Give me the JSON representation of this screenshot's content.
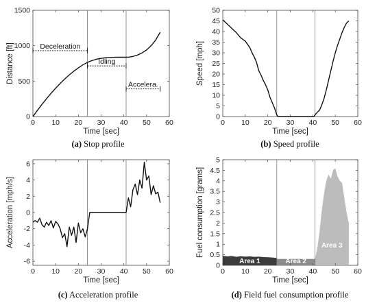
{
  "chart_data": [
    {
      "type": "line",
      "caption_letter": "(a)",
      "caption_text": " Stop profile",
      "xlabel": "Time [sec]",
      "ylabel": "Distance [ft]",
      "xlim": [
        0,
        60
      ],
      "ylim": [
        0,
        1500
      ],
      "xticks": [
        0,
        10,
        20,
        30,
        40,
        50,
        60
      ],
      "yticks": [
        0,
        500,
        1000,
        1500
      ],
      "vlines": [
        24,
        41
      ],
      "series": [
        {
          "x": [
            0,
            2,
            4,
            6,
            8,
            10,
            12,
            14,
            16,
            18,
            20,
            22,
            24,
            26,
            28,
            30,
            32,
            34,
            36,
            38,
            40,
            41,
            42,
            44,
            46,
            48,
            50,
            52,
            54,
            56
          ],
          "values": [
            0,
            88,
            172,
            252,
            328,
            400,
            467,
            530,
            588,
            640,
            688,
            730,
            765,
            790,
            810,
            822,
            830,
            834,
            836,
            837,
            837,
            837,
            838,
            848,
            868,
            898,
            940,
            1000,
            1080,
            1190
          ]
        }
      ],
      "annotations": [
        {
          "label": "Deceleration",
          "x_from": 0,
          "x_to": 24,
          "y": 930
        },
        {
          "label": "Idling",
          "x_from": 24,
          "x_to": 41,
          "y": 715
        },
        {
          "label": "Accelera.",
          "x_from": 41,
          "x_to": 56,
          "y": 390
        }
      ]
    },
    {
      "type": "line",
      "caption_letter": "(b)",
      "caption_text": " Speed profile",
      "xlabel": "Time [sec]",
      "ylabel": "Speed [mph]",
      "xlim": [
        0,
        60
      ],
      "ylim": [
        0,
        50
      ],
      "xticks": [
        0,
        10,
        20,
        30,
        40,
        50,
        60
      ],
      "yticks": [
        0,
        5,
        10,
        15,
        20,
        25,
        30,
        35,
        40,
        45,
        50
      ],
      "vlines": [
        24,
        41
      ],
      "series": [
        {
          "x": [
            0,
            2,
            4,
            6,
            8,
            10,
            12,
            13,
            14,
            15,
            16,
            17,
            18,
            19,
            20,
            21,
            22,
            23,
            24,
            24.5,
            40.5,
            41,
            42,
            43,
            44,
            45,
            46,
            47,
            48,
            49,
            50,
            51,
            52,
            53,
            54,
            55,
            56
          ],
          "values": [
            45.5,
            43.5,
            41.5,
            39.5,
            37,
            35.5,
            32.5,
            30,
            28,
            25.5,
            21.5,
            19.5,
            17,
            15,
            12.5,
            9,
            6.5,
            4,
            0.8,
            0,
            0,
            0.8,
            2,
            3,
            5.5,
            8.5,
            12.5,
            17,
            21.5,
            26,
            30,
            33.5,
            36.5,
            39.5,
            42,
            44,
            45
          ]
        }
      ]
    },
    {
      "type": "line",
      "caption_letter": "(c)",
      "caption_text": " Acceleration profile",
      "xlabel": "Time [sec]",
      "ylabel": "Acceleration [mph/s]",
      "xlim": [
        0,
        60
      ],
      "ylim": [
        -6.5,
        6.5
      ],
      "xticks": [
        0,
        10,
        20,
        30,
        40,
        50,
        60
      ],
      "yticks": [
        -6,
        -4,
        -2,
        0,
        2,
        4,
        6
      ],
      "vlines": [
        24,
        41
      ],
      "series": [
        {
          "x": [
            0,
            1,
            2,
            3,
            4,
            5,
            6,
            7,
            8,
            9,
            10,
            11,
            12,
            13,
            14,
            15,
            16,
            17,
            18,
            19,
            20,
            21,
            22,
            23,
            24,
            25,
            41,
            42,
            43,
            44,
            45,
            46,
            47,
            48,
            49,
            50,
            51,
            52,
            53,
            54,
            55,
            56
          ],
          "values": [
            -1.2,
            -1.0,
            -1.2,
            -0.7,
            -1.5,
            -1.8,
            -1.2,
            -1.6,
            -1.0,
            -1.9,
            -1.1,
            -1.4,
            -2.0,
            -3.1,
            -2.6,
            -4.2,
            -1.8,
            -2.8,
            -1.8,
            -3.7,
            -1.3,
            -2.5,
            -2.0,
            -3.0,
            -2.0,
            0.0,
            0.0,
            1.8,
            0.7,
            2.8,
            3.5,
            2.2,
            4.0,
            3.0,
            6.2,
            4.0,
            4.5,
            2.2,
            3.3,
            2.3,
            2.5,
            1.2
          ]
        }
      ]
    },
    {
      "type": "area",
      "caption_letter": "(d)",
      "caption_text": " Field fuel consumption profile",
      "xlabel": "Time [sec]",
      "ylabel": "Fuel consumption [grams]",
      "xlim": [
        0,
        60
      ],
      "ylim": [
        0,
        5
      ],
      "xticks": [
        0,
        10,
        20,
        30,
        40,
        50,
        60
      ],
      "yticks": [
        0,
        0.5,
        1,
        1.5,
        2,
        2.5,
        3,
        3.5,
        4,
        4.5,
        5
      ],
      "vlines": [
        24,
        41
      ],
      "series": [
        {
          "name": "Area 1",
          "color": "#3c3c3c",
          "x": [
            0,
            2,
            4,
            6,
            8,
            10,
            12,
            14,
            16,
            18,
            20,
            22,
            24
          ],
          "values": [
            0.45,
            0.42,
            0.44,
            0.4,
            0.43,
            0.41,
            0.42,
            0.4,
            0.41,
            0.39,
            0.38,
            0.37,
            0.35
          ]
        },
        {
          "name": "Area 2",
          "color": "#8c8c8c",
          "x": [
            24,
            41
          ],
          "values": [
            0.3,
            0.3
          ]
        },
        {
          "name": "Area 3",
          "color": "#bcbcbc",
          "x": [
            41,
            42,
            43,
            44,
            45,
            46,
            47,
            48,
            49,
            50,
            51,
            52,
            53,
            54,
            55,
            56
          ],
          "values": [
            0.3,
            0.8,
            1.6,
            2.6,
            3.4,
            4.0,
            4.3,
            4.1,
            4.5,
            4.6,
            4.2,
            4.0,
            3.9,
            3.2,
            2.5,
            2.0
          ]
        }
      ]
    }
  ]
}
